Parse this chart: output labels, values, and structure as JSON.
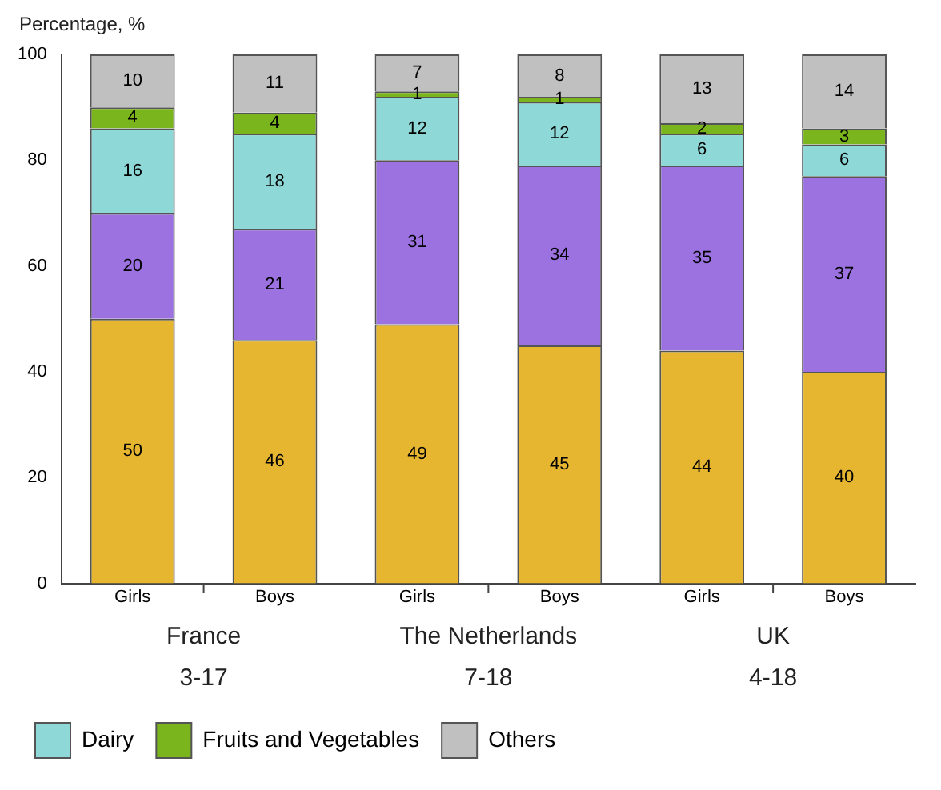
{
  "chart_data": {
    "type": "bar",
    "ylabel": "Percentage, %",
    "categories": [
      "Girls",
      "Boys",
      "Girls",
      "Boys",
      "Girls",
      "Boys"
    ],
    "stacked": true,
    "series": [
      {
        "color": "#e6b631",
        "values": [
          50,
          46,
          49,
          45,
          44,
          40
        ]
      },
      {
        "color": "#9b72e0",
        "values": [
          20,
          21,
          31,
          34,
          35,
          37
        ]
      },
      {
        "name": "Dairy",
        "color": "#8fd8d8",
        "values": [
          16,
          18,
          12,
          12,
          6,
          6
        ]
      },
      {
        "name": "Fruits and Vegetables",
        "color": "#7ab51d",
        "values": [
          4,
          4,
          1,
          1,
          2,
          3
        ]
      },
      {
        "name": "Others",
        "color": "#c0c0c0",
        "values": [
          10,
          11,
          7,
          8,
          13,
          14
        ]
      }
    ],
    "ylim": [
      0,
      100
    ],
    "yticks": [
      0,
      20,
      40,
      60,
      80,
      100
    ],
    "data_labels": true,
    "grid": false,
    "legend": "bottom",
    "annotations": [
      "France",
      "3-17",
      "The Netherlands",
      "7-18",
      "UK",
      "4-18"
    ]
  }
}
